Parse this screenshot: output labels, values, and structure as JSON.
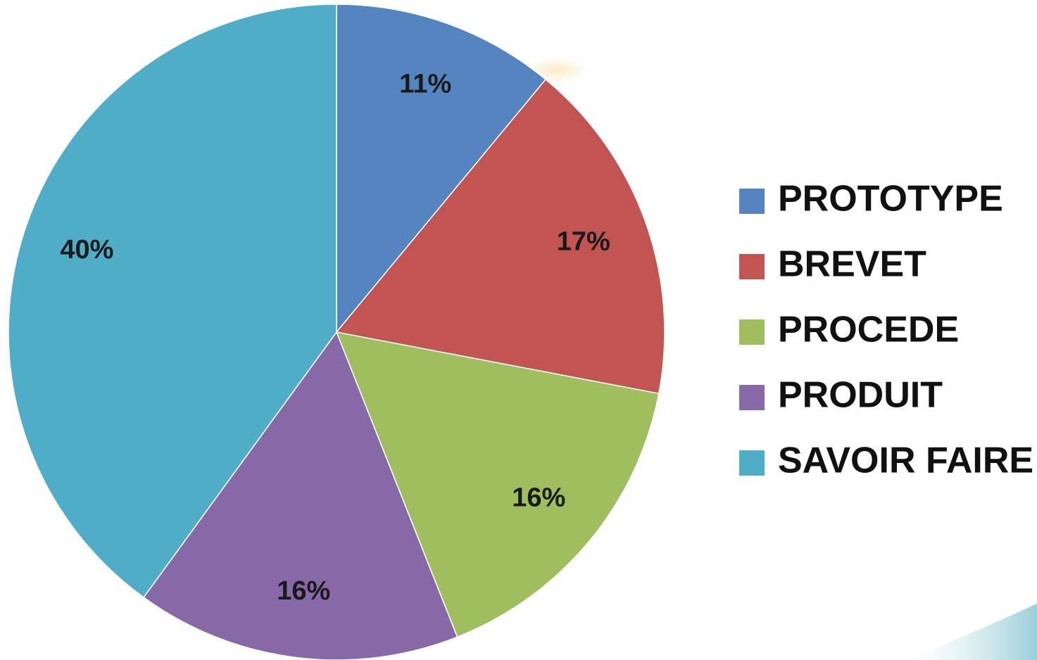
{
  "chart_data": {
    "type": "pie",
    "title": "",
    "categories": [
      "PROTOTYPE",
      "BREVET",
      "PROCEDE",
      "PRODUIT",
      "SAVOIR FAIRE"
    ],
    "values": [
      11,
      17,
      16,
      16,
      40
    ],
    "labels": [
      "11%",
      "17%",
      "16%",
      "16%",
      "40%"
    ],
    "colors": [
      "#5585c0",
      "#c25552",
      "#9fbe5e",
      "#8669a6",
      "#4fadc7"
    ],
    "start_angle": "12 o'clock",
    "direction": "clockwise",
    "legend_position": "right"
  }
}
